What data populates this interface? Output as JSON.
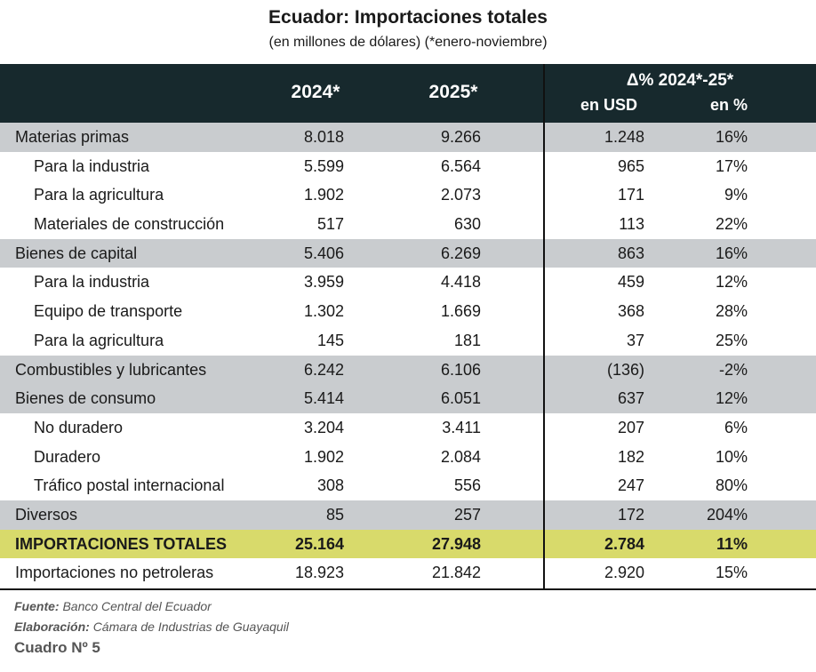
{
  "title": "Ecuador: Importaciones totales",
  "subtitle": "(en millones de dólares) (*enero-noviembre)",
  "header": {
    "col2024": "2024*",
    "col2025": "2025*",
    "delta": "Δ% 2024*-25*",
    "usd": "en USD",
    "pct": "en %"
  },
  "colors": {
    "header_bg": "#17292d",
    "grey_row": "#c9cccf",
    "total_row": "#d8da6b"
  },
  "rows": [
    {
      "label": "Materias primas",
      "v2024": "8.018",
      "v2025": "9.266",
      "usd": "1.248",
      "pct": "16%",
      "style": "grey"
    },
    {
      "label": "Para la industria",
      "v2024": "5.599",
      "v2025": "6.564",
      "usd": "965",
      "pct": "17%",
      "style": "sub"
    },
    {
      "label": "Para la agricultura",
      "v2024": "1.902",
      "v2025": "2.073",
      "usd": "171",
      "pct": "9%",
      "style": "sub"
    },
    {
      "label": "Materiales de construcción",
      "v2024": "517",
      "v2025": "630",
      "usd": "113",
      "pct": "22%",
      "style": "sub"
    },
    {
      "label": "Bienes de capital",
      "v2024": "5.406",
      "v2025": "6.269",
      "usd": "863",
      "pct": "16%",
      "style": "grey"
    },
    {
      "label": "Para la industria",
      "v2024": "3.959",
      "v2025": "4.418",
      "usd": "459",
      "pct": "12%",
      "style": "sub"
    },
    {
      "label": "Equipo de transporte",
      "v2024": "1.302",
      "v2025": "1.669",
      "usd": "368",
      "pct": "28%",
      "style": "sub"
    },
    {
      "label": "Para la agricultura",
      "v2024": "145",
      "v2025": "181",
      "usd": "37",
      "pct": "25%",
      "style": "sub"
    },
    {
      "label": "Combustibles y lubricantes",
      "v2024": "6.242",
      "v2025": "6.106",
      "usd": "(136)",
      "pct": "-2%",
      "style": "grey"
    },
    {
      "label": "Bienes de consumo",
      "v2024": "5.414",
      "v2025": "6.051",
      "usd": "637",
      "pct": "12%",
      "style": "grey"
    },
    {
      "label": "No duradero",
      "v2024": "3.204",
      "v2025": "3.411",
      "usd": "207",
      "pct": "6%",
      "style": "sub"
    },
    {
      "label": "Duradero",
      "v2024": "1.902",
      "v2025": "2.084",
      "usd": "182",
      "pct": "10%",
      "style": "sub"
    },
    {
      "label": "Tráfico postal internacional",
      "v2024": "308",
      "v2025": "556",
      "usd": "247",
      "pct": "80%",
      "style": "sub"
    },
    {
      "label": "Diversos",
      "v2024": "85",
      "v2025": "257",
      "usd": "172",
      "pct": "204%",
      "style": "grey"
    },
    {
      "label": "IMPORTACIONES TOTALES",
      "v2024": "25.164",
      "v2025": "27.948",
      "usd": "2.784",
      "pct": "11%",
      "style": "total"
    },
    {
      "label": "Importaciones no petroleras",
      "v2024": "18.923",
      "v2025": "21.842",
      "usd": "2.920",
      "pct": "15%",
      "style": "plain"
    }
  ],
  "footer": {
    "source_label": "Fuente:",
    "source": "Banco Central del Ecuador",
    "prep_label": "Elaboración:",
    "prep": "Cámara de Industrias de Guayaquil",
    "table_number": "Cuadro Nº 5"
  }
}
